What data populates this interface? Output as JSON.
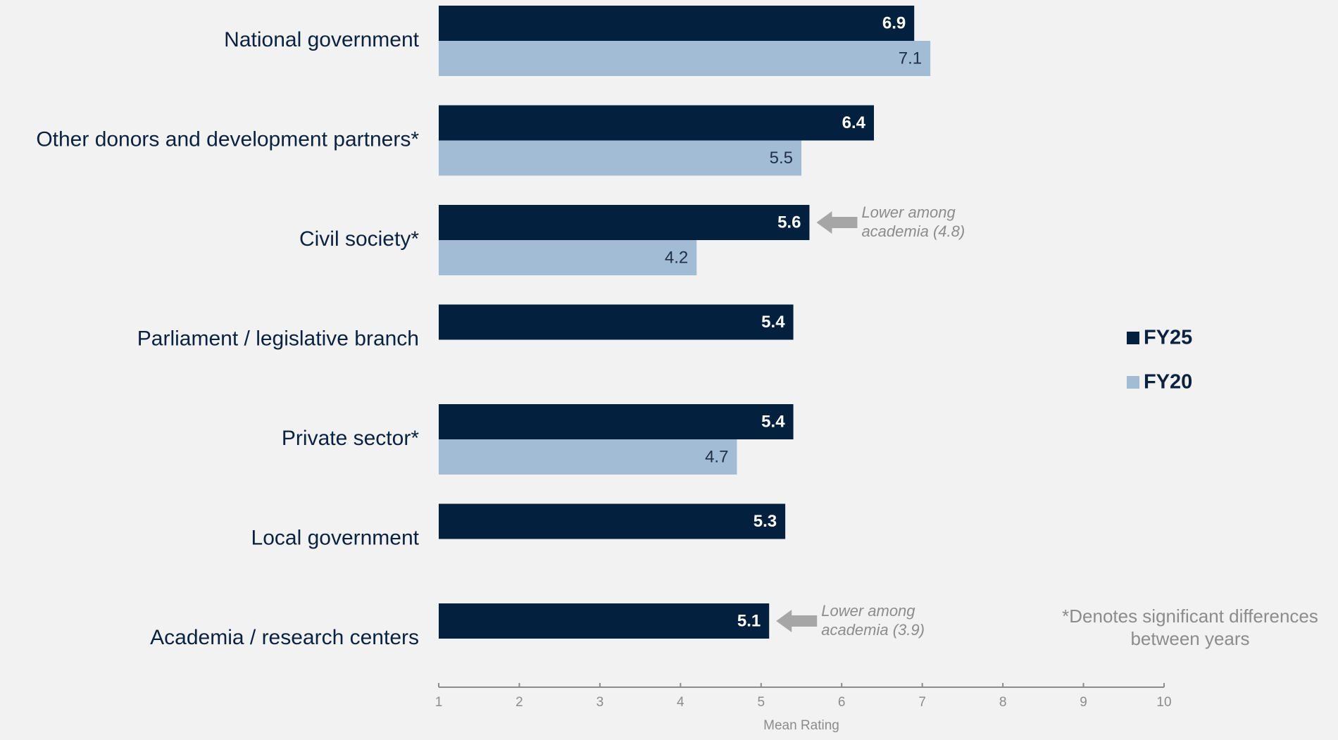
{
  "chart_data": {
    "type": "bar",
    "orientation": "horizontal",
    "categories": [
      "National government",
      "Other donors and development partners*",
      "Civil society*",
      "Parliament / legislative branch",
      "Private sector*",
      "Local government",
      "Academia / research centers"
    ],
    "series": [
      {
        "name": "FY25",
        "color": "#04203f",
        "values": [
          6.9,
          6.4,
          5.6,
          5.4,
          5.4,
          5.3,
          5.1
        ]
      },
      {
        "name": "FY20",
        "color": "#a2bcd6",
        "values": [
          7.1,
          5.5,
          4.2,
          null,
          4.7,
          null,
          null
        ]
      }
    ],
    "data_labels": {
      "FY25": [
        "6.9",
        "6.4",
        "5.6",
        "5.4",
        "5.4",
        "5.3",
        "5.1"
      ],
      "FY20": [
        "7.1",
        "5.5",
        "4.2",
        "",
        "4.7",
        "",
        ""
      ]
    },
    "xlabel": "Mean Rating",
    "xlim": [
      1,
      10
    ],
    "xticks": [
      1,
      2,
      3,
      4,
      5,
      6,
      7,
      8,
      9,
      10
    ],
    "grid": false,
    "legend": {
      "placement": "right",
      "entries": [
        "FY25",
        "FY20"
      ]
    },
    "annotations": [
      {
        "category_index": 2,
        "arrow_color": "#a6a6a6",
        "lines": [
          "Lower among",
          "academia (4.8)"
        ]
      },
      {
        "category_index": 6,
        "arrow_color": "#a6a6a6",
        "lines": [
          "Lower among",
          "academia (3.9)"
        ]
      }
    ],
    "footnote": [
      "*Denotes significant differences",
      "between years"
    ]
  }
}
